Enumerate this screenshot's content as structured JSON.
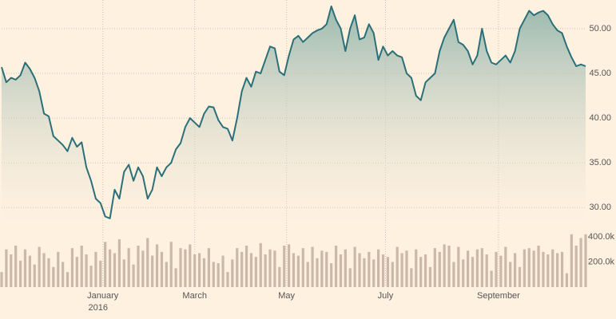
{
  "chart_data": {
    "type": "stock",
    "xlim": [
      0,
      124
    ],
    "xticks": [
      {
        "value": 21.5,
        "label": "January"
      },
      {
        "value": 41,
        "label": "March"
      },
      {
        "value": 60.5,
        "label": "May"
      },
      {
        "value": 81.5,
        "label": "July"
      },
      {
        "value": 105.5,
        "label": "September"
      }
    ],
    "year_label": "2016",
    "ylim": [
      27.8,
      53.2
    ],
    "yticks": [
      {
        "value": 30,
        "label": "30.00"
      },
      {
        "value": 35,
        "label": "35.00"
      },
      {
        "value": 40,
        "label": "40.00"
      },
      {
        "value": 45,
        "label": "45.00"
      },
      {
        "value": 50,
        "label": "50.00"
      }
    ],
    "y2lim": [
      0,
      444000
    ],
    "y2ticks": [
      {
        "value": 200000,
        "label": "200.0k"
      },
      {
        "value": 400000,
        "label": "400.0k"
      }
    ],
    "grid": true,
    "series": [
      {
        "color": "#2b6f79",
        "values": [
          45.7,
          44.0,
          44.5,
          44.3,
          44.8,
          46.2,
          45.5,
          44.5,
          43.0,
          40.5,
          40.2,
          38.0,
          37.5,
          37.0,
          36.3,
          37.8,
          36.8,
          37.3,
          34.5,
          33.0,
          31.0,
          30.5,
          29.0,
          28.8,
          32.0,
          31.0,
          34.0,
          34.8,
          33.0,
          34.5,
          33.5,
          31.0,
          32.0,
          34.5,
          33.5,
          34.5,
          35.0,
          36.5,
          37.2,
          39.0,
          40.0,
          39.5,
          39.0,
          40.5,
          41.3,
          41.2,
          39.8,
          39.0,
          38.8,
          37.5,
          40.0,
          43.0,
          44.5,
          43.5,
          45.2,
          45.0,
          46.5,
          48.0,
          47.8,
          45.2,
          44.8,
          47.0,
          48.8,
          49.2,
          48.5,
          49.0,
          49.5,
          49.8,
          50.0,
          50.5,
          52.5,
          51.0,
          50.0,
          47.5,
          50.0,
          51.5,
          48.8,
          49.0,
          50.5,
          49.5,
          46.5,
          48.0,
          47.0,
          47.5,
          47.0,
          46.8,
          45.0,
          44.5,
          42.5,
          42.0,
          44.0,
          44.5,
          45.0,
          47.5,
          49.0,
          50.0,
          51.0,
          48.5,
          48.2,
          47.5,
          46.0,
          47.0,
          50.0,
          47.5,
          46.2,
          46.0,
          46.5,
          47.0,
          46.2,
          47.5,
          50.0,
          51.0,
          52.0,
          51.5,
          51.8,
          52.0,
          51.5,
          50.5,
          49.8,
          49.5,
          48.0,
          46.8,
          45.8,
          46.0,
          45.8
        ]
      },
      {
        "color": "#cbb8a8",
        "axis": "y2",
        "values": [
          120000,
          300000,
          260000,
          330000,
          210000,
          300000,
          250000,
          180000,
          320000,
          270000,
          230000,
          160000,
          280000,
          200000,
          120000,
          310000,
          240000,
          330000,
          260000,
          170000,
          280000,
          210000,
          360000,
          300000,
          270000,
          380000,
          220000,
          310000,
          180000,
          330000,
          290000,
          390000,
          250000,
          340000,
          280000,
          200000,
          360000,
          150000,
          310000,
          300000,
          340000,
          260000,
          270000,
          230000,
          310000,
          200000,
          190000,
          250000,
          120000,
          220000,
          310000,
          280000,
          330000,
          270000,
          240000,
          350000,
          260000,
          300000,
          290000,
          160000,
          330000,
          340000,
          270000,
          250000,
          310000,
          200000,
          320000,
          230000,
          290000,
          280000,
          190000,
          330000,
          260000,
          300000,
          150000,
          320000,
          270000,
          230000,
          280000,
          220000,
          300000,
          260000,
          240000,
          200000,
          320000,
          270000,
          290000,
          150000,
          300000,
          240000,
          260000,
          160000,
          310000,
          280000,
          340000,
          330000,
          200000,
          320000,
          220000,
          290000,
          240000,
          300000,
          310000,
          260000,
          130000,
          280000,
          250000,
          320000,
          200000,
          270000,
          160000,
          300000,
          310000,
          290000,
          330000,
          280000,
          260000,
          300000,
          270000,
          280000,
          110000,
          420000,
          330000,
          390000,
          420000
        ]
      }
    ]
  }
}
